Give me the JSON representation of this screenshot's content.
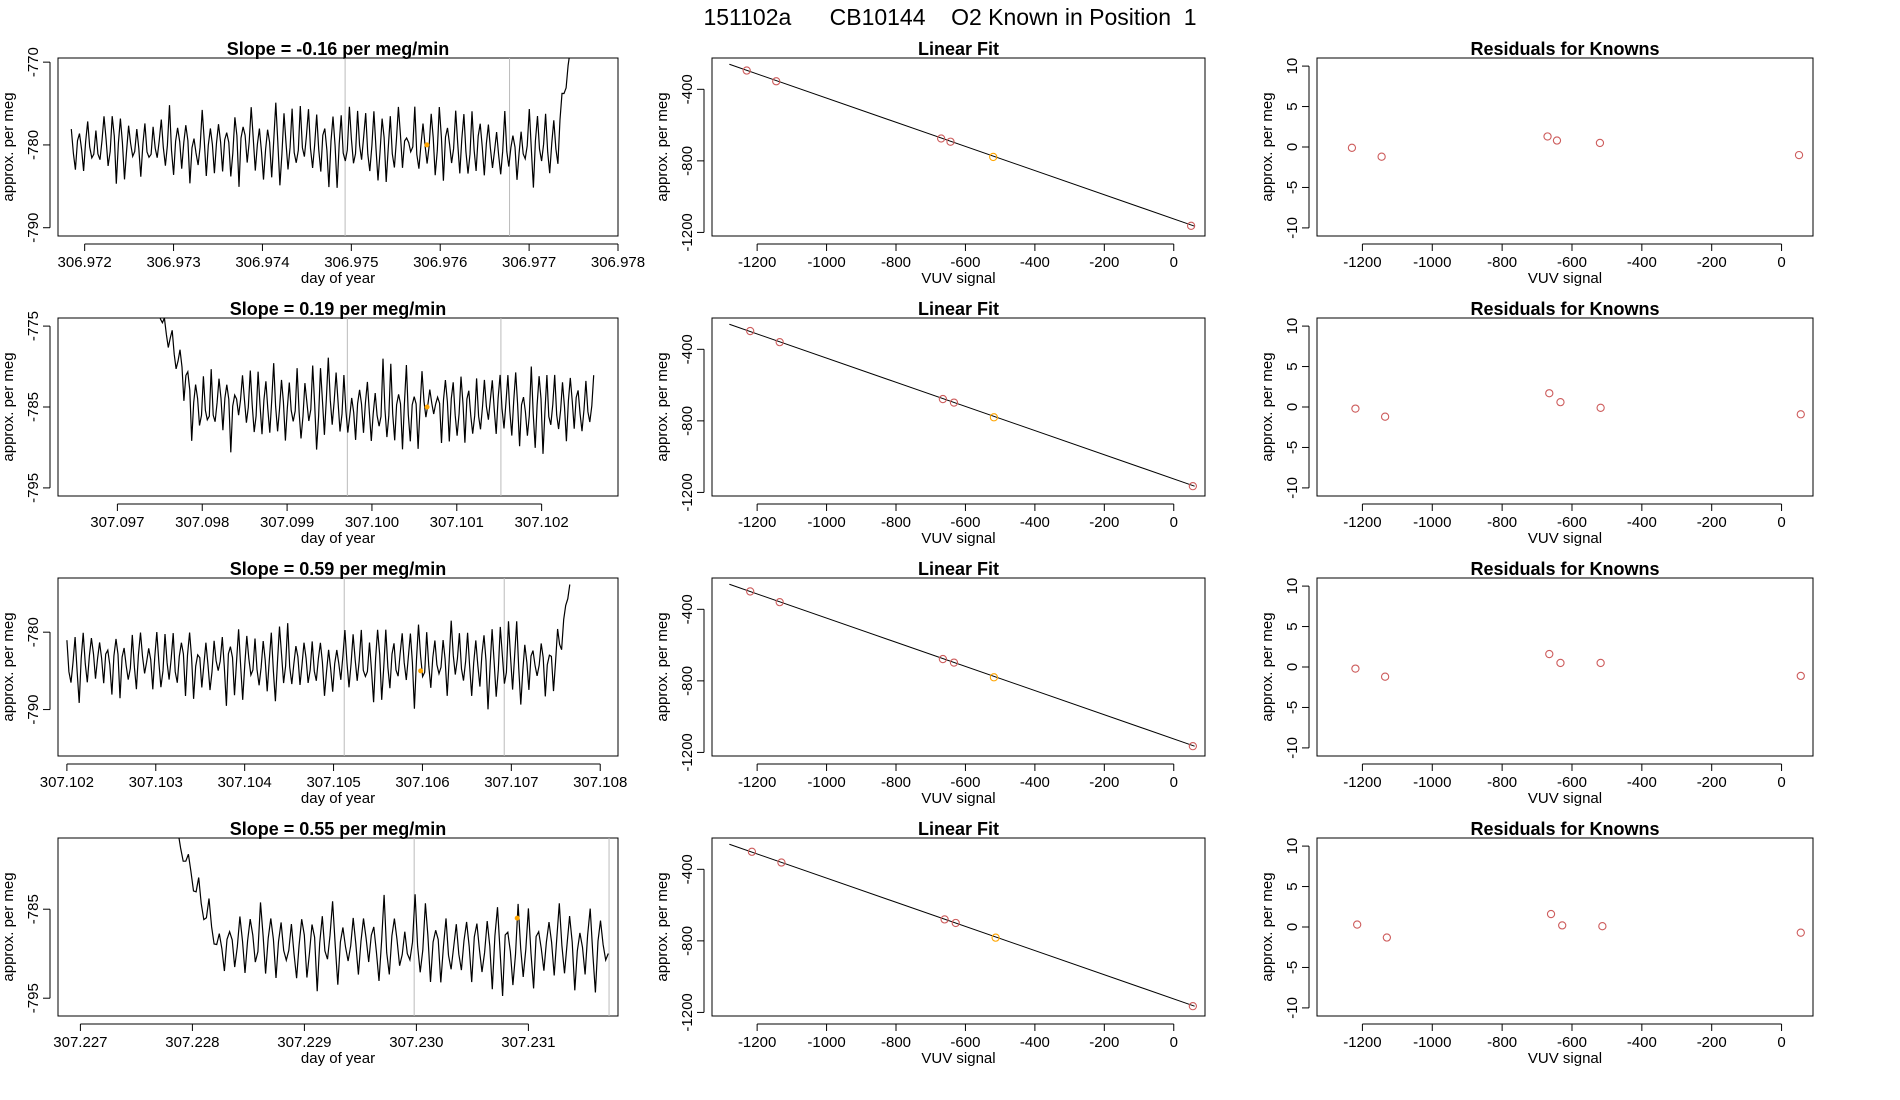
{
  "page": {
    "title": "151102a      CB10144    O2 Known in Position  1"
  },
  "colors": {
    "frame": "#000000",
    "trace": "#000000",
    "vline": "#bbbbbb",
    "known_point": "#cd5c5c",
    "highlight_point": "#ffa500"
  },
  "chart_data": [
    {
      "type": "line",
      "row": 1,
      "title": "Slope =  -0.16  per meg/min",
      "xlabel": "day of year",
      "ylabel": "approx. per meg",
      "xlim": [
        306.9717,
        306.978
      ],
      "ylim": [
        -791,
        -769.5
      ],
      "xticks": [
        306.972,
        306.973,
        306.974,
        306.975,
        306.976,
        306.977,
        306.978
      ],
      "xtick_labels": [
        "306.972",
        "306.973",
        "306.974",
        "306.975",
        "306.976",
        "306.977",
        "306.978"
      ],
      "yticks": [
        -790,
        -780,
        -770
      ],
      "ytick_labels": [
        "-790",
        "-780",
        "-770"
      ],
      "vlines": [
        306.97493,
        306.97678
      ],
      "highlight": [
        306.97585,
        -780
      ],
      "trace": {
        "x_start": 306.97185,
        "x_end": 306.97747,
        "base": -780,
        "amp": 3.2,
        "period": 9.2e-05,
        "start_level": -780,
        "start_extent": 0.0,
        "end_rise_x": 306.97732,
        "end_level": -768,
        "seed": 11
      }
    },
    {
      "type": "scatter",
      "row": 1,
      "title": "Linear Fit",
      "xlabel": "VUV signal",
      "ylabel": "approx. per meg",
      "xlim": [
        -1330,
        90
      ],
      "ylim": [
        -1220,
        -225
      ],
      "xticks": [
        -1200,
        -1000,
        -800,
        -600,
        -400,
        -200,
        0
      ],
      "xtick_labels": [
        "-1200",
        "-1000",
        "-800",
        "-600",
        "-400",
        "-200",
        "0"
      ],
      "yticks": [
        -1200,
        -800,
        -400
      ],
      "ytick_labels": [
        "-1200",
        "-800",
        "-400"
      ],
      "fit": {
        "x": [
          -1280,
          60
        ],
        "y": [
          -260,
          -1165
        ]
      },
      "points": {
        "x": [
          -1230,
          -1145,
          -670,
          -643,
          -520,
          50
        ],
        "y": [
          -295,
          -355,
          -675,
          -693,
          -778,
          -1163
        ]
      },
      "highlight_index": 4
    },
    {
      "type": "scatter",
      "row": 1,
      "title": "Residuals for Knowns",
      "xlabel": "VUV signal",
      "ylabel": "approx. per meg",
      "xlim": [
        -1330,
        90
      ],
      "ylim": [
        -11,
        11
      ],
      "xticks": [
        -1200,
        -1000,
        -800,
        -600,
        -400,
        -200,
        0
      ],
      "xtick_labels": [
        "-1200",
        "-1000",
        "-800",
        "-600",
        "-400",
        "-200",
        "0"
      ],
      "yticks": [
        -10,
        -5,
        0,
        5,
        10
      ],
      "ytick_labels": [
        "-10",
        "-5",
        "0",
        "5",
        "10"
      ],
      "points": {
        "x": [
          -1230,
          -1145,
          -670,
          -643,
          -520,
          50
        ],
        "y": [
          -0.1,
          -1.2,
          1.3,
          0.8,
          0.5,
          -1.0
        ]
      }
    },
    {
      "type": "line",
      "row": 2,
      "title": "Slope =  0.19  per meg/min",
      "xlabel": "day of year",
      "ylabel": "approx. per meg",
      "xlim": [
        307.0963,
        307.1029
      ],
      "ylim": [
        -796,
        -774
      ],
      "xticks": [
        307.097,
        307.098,
        307.099,
        307.1,
        307.101,
        307.102
      ],
      "xtick_labels": [
        "307.097",
        "307.098",
        "307.099",
        "307.100",
        "307.101",
        "307.102"
      ],
      "yticks": [
        -795,
        -785,
        -775
      ],
      "ytick_labels": [
        "-795",
        "-785",
        "-775"
      ],
      "vlines": [
        307.09971,
        307.10152
      ],
      "highlight": [
        307.10065,
        -785
      ],
      "trace": {
        "x_start": 307.09737,
        "x_end": 307.10263,
        "base": -785,
        "amp": 3.5,
        "period": 9.2e-05,
        "start_level": -770,
        "start_extent": 0.00055,
        "end_rise_x": null,
        "end_level": null,
        "seed": 23
      }
    },
    {
      "type": "scatter",
      "row": 2,
      "title": "Linear Fit",
      "xlabel": "VUV signal",
      "ylabel": "approx. per meg",
      "xlim": [
        -1330,
        90
      ],
      "ylim": [
        -1220,
        -225
      ],
      "xticks": [
        -1200,
        -1000,
        -800,
        -600,
        -400,
        -200,
        0
      ],
      "xtick_labels": [
        "-1200",
        "-1000",
        "-800",
        "-600",
        "-400",
        "-200",
        "0"
      ],
      "yticks": [
        -1200,
        -800,
        -400
      ],
      "ytick_labels": [
        "-1200",
        "-800",
        "-400"
      ],
      "fit": {
        "x": [
          -1280,
          60
        ],
        "y": [
          -260,
          -1165
        ]
      },
      "points": {
        "x": [
          -1220,
          -1135,
          -665,
          -633,
          -518,
          55
        ],
        "y": [
          -298,
          -360,
          -678,
          -698,
          -780,
          -1165
        ]
      },
      "highlight_index": 4
    },
    {
      "type": "scatter",
      "row": 2,
      "title": "Residuals for Knowns",
      "xlabel": "VUV signal",
      "ylabel": "approx. per meg",
      "xlim": [
        -1330,
        90
      ],
      "ylim": [
        -11,
        11
      ],
      "xticks": [
        -1200,
        -1000,
        -800,
        -600,
        -400,
        -200,
        0
      ],
      "xtick_labels": [
        "-1200",
        "-1000",
        "-800",
        "-600",
        "-400",
        "-200",
        "0"
      ],
      "yticks": [
        -10,
        -5,
        0,
        5,
        10
      ],
      "ytick_labels": [
        "-10",
        "-5",
        "0",
        "5",
        "10"
      ],
      "points": {
        "x": [
          -1220,
          -1135,
          -665,
          -633,
          -518,
          55
        ],
        "y": [
          -0.2,
          -1.2,
          1.7,
          0.6,
          -0.1,
          -0.9
        ]
      }
    },
    {
      "type": "line",
      "row": 3,
      "title": "Slope =  0.59  per meg/min",
      "xlabel": "day of year",
      "ylabel": "approx. per meg",
      "xlim": [
        307.1019,
        307.1082
      ],
      "ylim": [
        -796,
        -773
      ],
      "xticks": [
        307.102,
        307.103,
        307.104,
        307.105,
        307.106,
        307.107,
        307.108
      ],
      "xtick_labels": [
        "307.102",
        "307.103",
        "307.104",
        "307.105",
        "307.106",
        "307.107",
        "307.108"
      ],
      "yticks": [
        -790,
        -780
      ],
      "ytick_labels": [
        "-790",
        "-780"
      ],
      "vlines": [
        307.10512,
        307.10692
      ],
      "highlight": [
        307.10598,
        -785
      ],
      "trace": {
        "x_start": 307.102,
        "x_end": 307.10768,
        "base": -784,
        "amp": 3.4,
        "period": 9.2e-05,
        "start_level": -784,
        "start_extent": 0.0,
        "end_rise_x": 307.10752,
        "end_level": -772,
        "seed": 37
      }
    },
    {
      "type": "scatter",
      "row": 3,
      "title": "Linear Fit",
      "xlabel": "VUV signal",
      "ylabel": "approx. per meg",
      "xlim": [
        -1330,
        90
      ],
      "ylim": [
        -1220,
        -225
      ],
      "xticks": [
        -1200,
        -1000,
        -800,
        -600,
        -400,
        -200,
        0
      ],
      "xtick_labels": [
        "-1200",
        "-1000",
        "-800",
        "-600",
        "-400",
        "-200",
        "0"
      ],
      "yticks": [
        -1200,
        -800,
        -400
      ],
      "ytick_labels": [
        "-1200",
        "-800",
        "-400"
      ],
      "fit": {
        "x": [
          -1280,
          60
        ],
        "y": [
          -260,
          -1165
        ]
      },
      "points": {
        "x": [
          -1220,
          -1135,
          -665,
          -633,
          -518,
          55
        ],
        "y": [
          -300,
          -360,
          -678,
          -698,
          -780,
          -1165
        ]
      },
      "highlight_index": 4
    },
    {
      "type": "scatter",
      "row": 3,
      "title": "Residuals for Knowns",
      "xlabel": "VUV signal",
      "ylabel": "approx. per meg",
      "xlim": [
        -1330,
        90
      ],
      "ylim": [
        -11,
        11
      ],
      "xticks": [
        -1200,
        -1000,
        -800,
        -600,
        -400,
        -200,
        0
      ],
      "xtick_labels": [
        "-1200",
        "-1000",
        "-800",
        "-600",
        "-400",
        "-200",
        "0"
      ],
      "yticks": [
        -10,
        -5,
        0,
        5,
        10
      ],
      "ytick_labels": [
        "-10",
        "-5",
        "0",
        "5",
        "10"
      ],
      "points": {
        "x": [
          -1220,
          -1135,
          -665,
          -633,
          -518,
          55
        ],
        "y": [
          -0.2,
          -1.2,
          1.6,
          0.5,
          0.5,
          -1.1
        ]
      }
    },
    {
      "type": "line",
      "row": 4,
      "title": "Slope =  0.55  per meg/min",
      "xlabel": "day of year",
      "ylabel": "approx. per meg",
      "xlim": [
        307.2268,
        307.2318
      ],
      "ylim": [
        -797,
        -777
      ],
      "xticks": [
        307.227,
        307.228,
        307.229,
        307.23,
        307.231
      ],
      "xtick_labels": [
        "307.227",
        "307.228",
        "307.229",
        "307.230",
        "307.231"
      ],
      "yticks": [
        -795,
        -785
      ],
      "ytick_labels": [
        "-795",
        "-785"
      ],
      "vlines": [
        307.22998,
        307.23172
      ],
      "highlight": [
        307.2309,
        -786
      ],
      "trace": {
        "x_start": 307.22778,
        "x_end": 307.23173,
        "base": -789,
        "amp": 3.2,
        "period": 9.2e-05,
        "start_level": -774,
        "start_extent": 0.00045,
        "end_rise_x": null,
        "end_level": null,
        "seed": 53
      }
    },
    {
      "type": "scatter",
      "row": 4,
      "title": "Linear Fit",
      "xlabel": "VUV signal",
      "ylabel": "approx. per meg",
      "xlim": [
        -1330,
        90
      ],
      "ylim": [
        -1220,
        -225
      ],
      "xticks": [
        -1200,
        -1000,
        -800,
        -600,
        -400,
        -200,
        0
      ],
      "xtick_labels": [
        "-1200",
        "-1000",
        "-800",
        "-600",
        "-400",
        "-200",
        "0"
      ],
      "yticks": [
        -1200,
        -800,
        -400
      ],
      "ytick_labels": [
        "-1200",
        "-800",
        "-400"
      ],
      "fit": {
        "x": [
          -1280,
          60
        ],
        "y": [
          -260,
          -1165
        ]
      },
      "points": {
        "x": [
          -1215,
          -1130,
          -660,
          -628,
          -513,
          55
        ],
        "y": [
          -302,
          -362,
          -680,
          -700,
          -782,
          -1165
        ]
      },
      "highlight_index": 4
    },
    {
      "type": "scatter",
      "row": 4,
      "title": "Residuals for Knowns",
      "xlabel": "VUV signal",
      "ylabel": "approx. per meg",
      "xlim": [
        -1330,
        90
      ],
      "ylim": [
        -11,
        11
      ],
      "xticks": [
        -1200,
        -1000,
        -800,
        -600,
        -400,
        -200,
        0
      ],
      "xtick_labels": [
        "-1200",
        "-1000",
        "-800",
        "-600",
        "-400",
        "-200",
        "0"
      ],
      "yticks": [
        -10,
        -5,
        0,
        5,
        10
      ],
      "ytick_labels": [
        "-10",
        "-5",
        "0",
        "5",
        "10"
      ],
      "points": {
        "x": [
          -1215,
          -1130,
          -660,
          -628,
          -513,
          55
        ],
        "y": [
          0.3,
          -1.3,
          1.6,
          0.2,
          0.1,
          -0.7
        ]
      }
    }
  ]
}
